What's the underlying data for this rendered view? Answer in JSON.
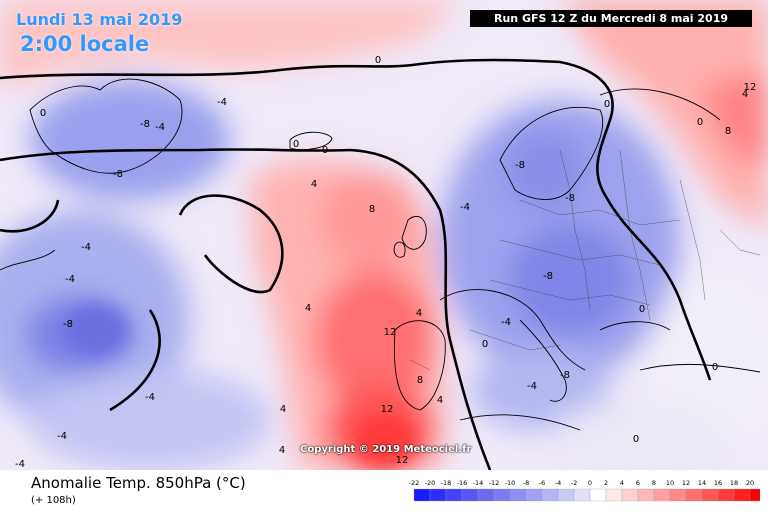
{
  "header": {
    "date_label": "Lundi 13 mai 2019",
    "time_label": "2:00 locale",
    "run_label": "Run GFS 12 Z du Mercredi 8 mai 2019"
  },
  "copyright": "Copyright © 2019 Meteociel.fr",
  "footer": {
    "title": "Anomalie Temp. 850hPa (°C)",
    "lead_time": "(+ 108h)"
  },
  "legend": {
    "ticks": [
      "-22",
      "-20",
      "-18",
      "-16",
      "-14",
      "-12",
      "-10",
      "-8",
      "-6",
      "-4",
      "-2",
      "0",
      "2",
      "4",
      "6",
      "8",
      "10",
      "12",
      "14",
      "16",
      "18",
      "20"
    ],
    "colors": [
      "#1a1aff",
      "#2e2eff",
      "#4444ff",
      "#5656f0",
      "#6a6aee",
      "#7c7cee",
      "#8e8ef2",
      "#a2a2f4",
      "#b6b6f6",
      "#cacaf8",
      "#e0e0fa",
      "#ffffff",
      "#ffe8e8",
      "#ffd0d0",
      "#ffb8b8",
      "#ffa0a0",
      "#ff8888",
      "#ff7070",
      "#ff5858",
      "#ff3c3c",
      "#ff2020",
      "#ff0000"
    ]
  },
  "map": {
    "contour_labels": [
      "0",
      "0",
      "0",
      "0",
      "0",
      "0",
      "0",
      "0",
      "0",
      "0",
      "4",
      "4",
      "4",
      "4",
      "4",
      "4",
      "4",
      "8",
      "8",
      "8",
      "12",
      "12",
      "12",
      "12",
      "-4",
      "-4",
      "-4",
      "-4",
      "-4",
      "-4",
      "-4",
      "-4",
      "-4",
      "-4",
      "-8",
      "-8",
      "-8",
      "-8",
      "-8",
      "-8",
      "-8"
    ],
    "colors": {
      "warm": "#ff6b6b",
      "cold": "#7b7be8",
      "neutral": "#f4f0fa",
      "coast": "#000000",
      "border": "#444444"
    }
  }
}
